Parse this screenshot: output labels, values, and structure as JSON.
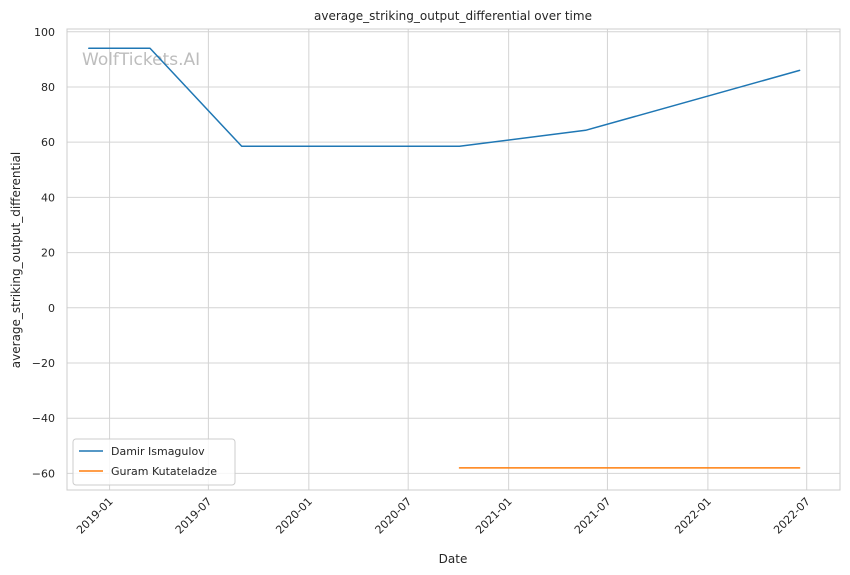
{
  "chart_data": {
    "type": "line",
    "title": "average_striking_output_differential over time",
    "xlabel": "Date",
    "ylabel": "average_striking_output_differential",
    "watermark": "WolfTickets.AI",
    "xlim": [
      "2018-10-15",
      "2022-08-31"
    ],
    "ylim": [
      -66,
      101
    ],
    "xticks": [
      {
        "date": "2019-01-01",
        "label": "2019-01"
      },
      {
        "date": "2019-07-01",
        "label": "2019-07"
      },
      {
        "date": "2020-01-01",
        "label": "2020-01"
      },
      {
        "date": "2020-07-01",
        "label": "2020-07"
      },
      {
        "date": "2021-01-01",
        "label": "2021-01"
      },
      {
        "date": "2021-07-01",
        "label": "2021-07"
      },
      {
        "date": "2022-01-01",
        "label": "2022-01"
      },
      {
        "date": "2022-07-01",
        "label": "2022-07"
      }
    ],
    "yticks": [
      {
        "value": 100,
        "label": "100"
      },
      {
        "value": 80,
        "label": "80"
      },
      {
        "value": 60,
        "label": "60"
      },
      {
        "value": 40,
        "label": "40"
      },
      {
        "value": 20,
        "label": "20"
      },
      {
        "value": 0,
        "label": "0"
      },
      {
        "value": -20,
        "label": "−20"
      },
      {
        "value": -40,
        "label": "−40"
      },
      {
        "value": -60,
        "label": "−60"
      }
    ],
    "grid": true,
    "legend_position": "lower-left",
    "series": [
      {
        "name": "Damir Ismagulov",
        "color": "#1f77b4",
        "points": [
          {
            "x": "2018-11-24",
            "y": 94
          },
          {
            "x": "2019-03-16",
            "y": 94
          },
          {
            "x": "2019-08-31",
            "y": 58.5
          },
          {
            "x": "2020-10-03",
            "y": 58.5
          },
          {
            "x": "2021-05-22",
            "y": 64.3
          },
          {
            "x": "2022-06-18",
            "y": 86
          }
        ]
      },
      {
        "name": "Guram Kutateladze",
        "color": "#ff7f0e",
        "points": [
          {
            "x": "2020-10-03",
            "y": -58
          },
          {
            "x": "2022-06-18",
            "y": -58
          }
        ]
      }
    ]
  }
}
